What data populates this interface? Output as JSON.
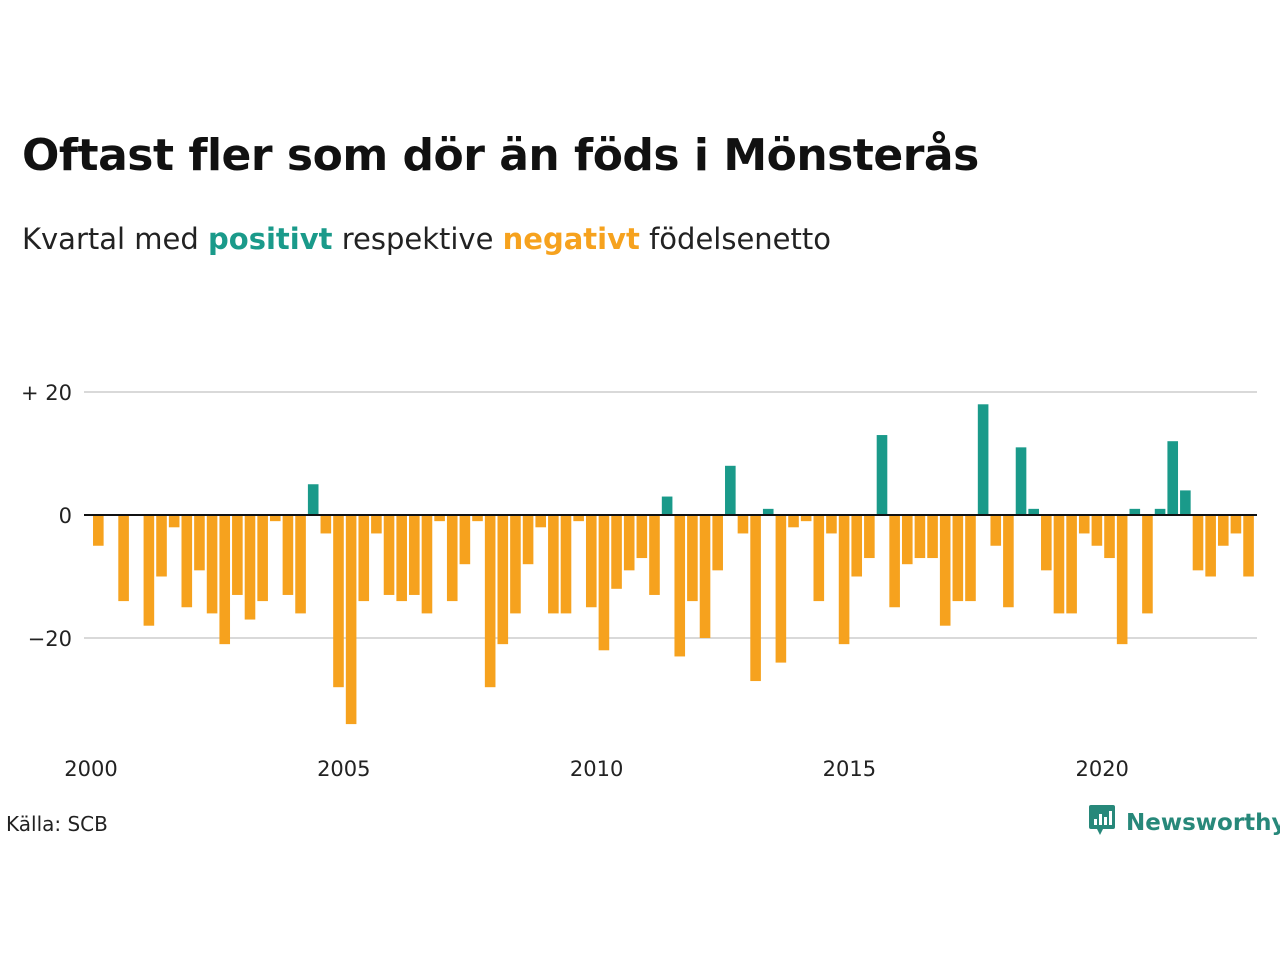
{
  "header": {
    "title": "Oftast fler som dör än föds i Mönsterås",
    "subtitle_prefix": "Kvartal med",
    "subtitle_positive": "positivt",
    "subtitle_middle": "respektive",
    "subtitle_negative": "negativt",
    "subtitle_suffix": "födelsenetto"
  },
  "footer": {
    "source": "Källa: SCB",
    "brand": "Newsworthy",
    "brand_icon": "bar-chart-speech-icon"
  },
  "colors": {
    "positive": "#1a9a8a",
    "negative": "#f6a21e",
    "grid": "#d9d9d9",
    "zero_line": "#111111",
    "brand": "#27887a"
  },
  "chart_data": {
    "type": "bar",
    "x_start": "2000 Q1",
    "x_step": "quarter",
    "values": [
      -5,
      0,
      -14,
      0,
      -18,
      -10,
      -2,
      -15,
      -9,
      -16,
      -21,
      -13,
      -17,
      -14,
      -1,
      -13,
      -16,
      5,
      -3,
      -28,
      -34,
      -14,
      -3,
      -13,
      -14,
      -13,
      -16,
      -1,
      -14,
      -8,
      -1,
      -28,
      -21,
      -16,
      -8,
      -2,
      -16,
      -16,
      -1,
      -15,
      -22,
      -12,
      -9,
      -7,
      -13,
      3,
      -23,
      -14,
      -20,
      -9,
      8,
      -3,
      -27,
      1,
      -24,
      -2,
      -1,
      -14,
      -3,
      -21,
      -10,
      -7,
      13,
      -15,
      -8,
      -7,
      -7,
      -18,
      -14,
      -14,
      18,
      -5,
      -15,
      11,
      1,
      -9,
      -16,
      -16,
      -3,
      -5,
      -7,
      -21,
      1,
      -16,
      1,
      12,
      4,
      -9,
      -10,
      -5,
      -3,
      -10
    ],
    "x_ticks": [
      "2000",
      "2005",
      "2010",
      "2015",
      "2020"
    ],
    "y_ticks": [
      "+ 20",
      "0",
      "−20"
    ],
    "y_tick_values": [
      20,
      0,
      -20
    ],
    "ylim": [
      -36,
      21
    ],
    "grid": true,
    "legend": "none"
  }
}
